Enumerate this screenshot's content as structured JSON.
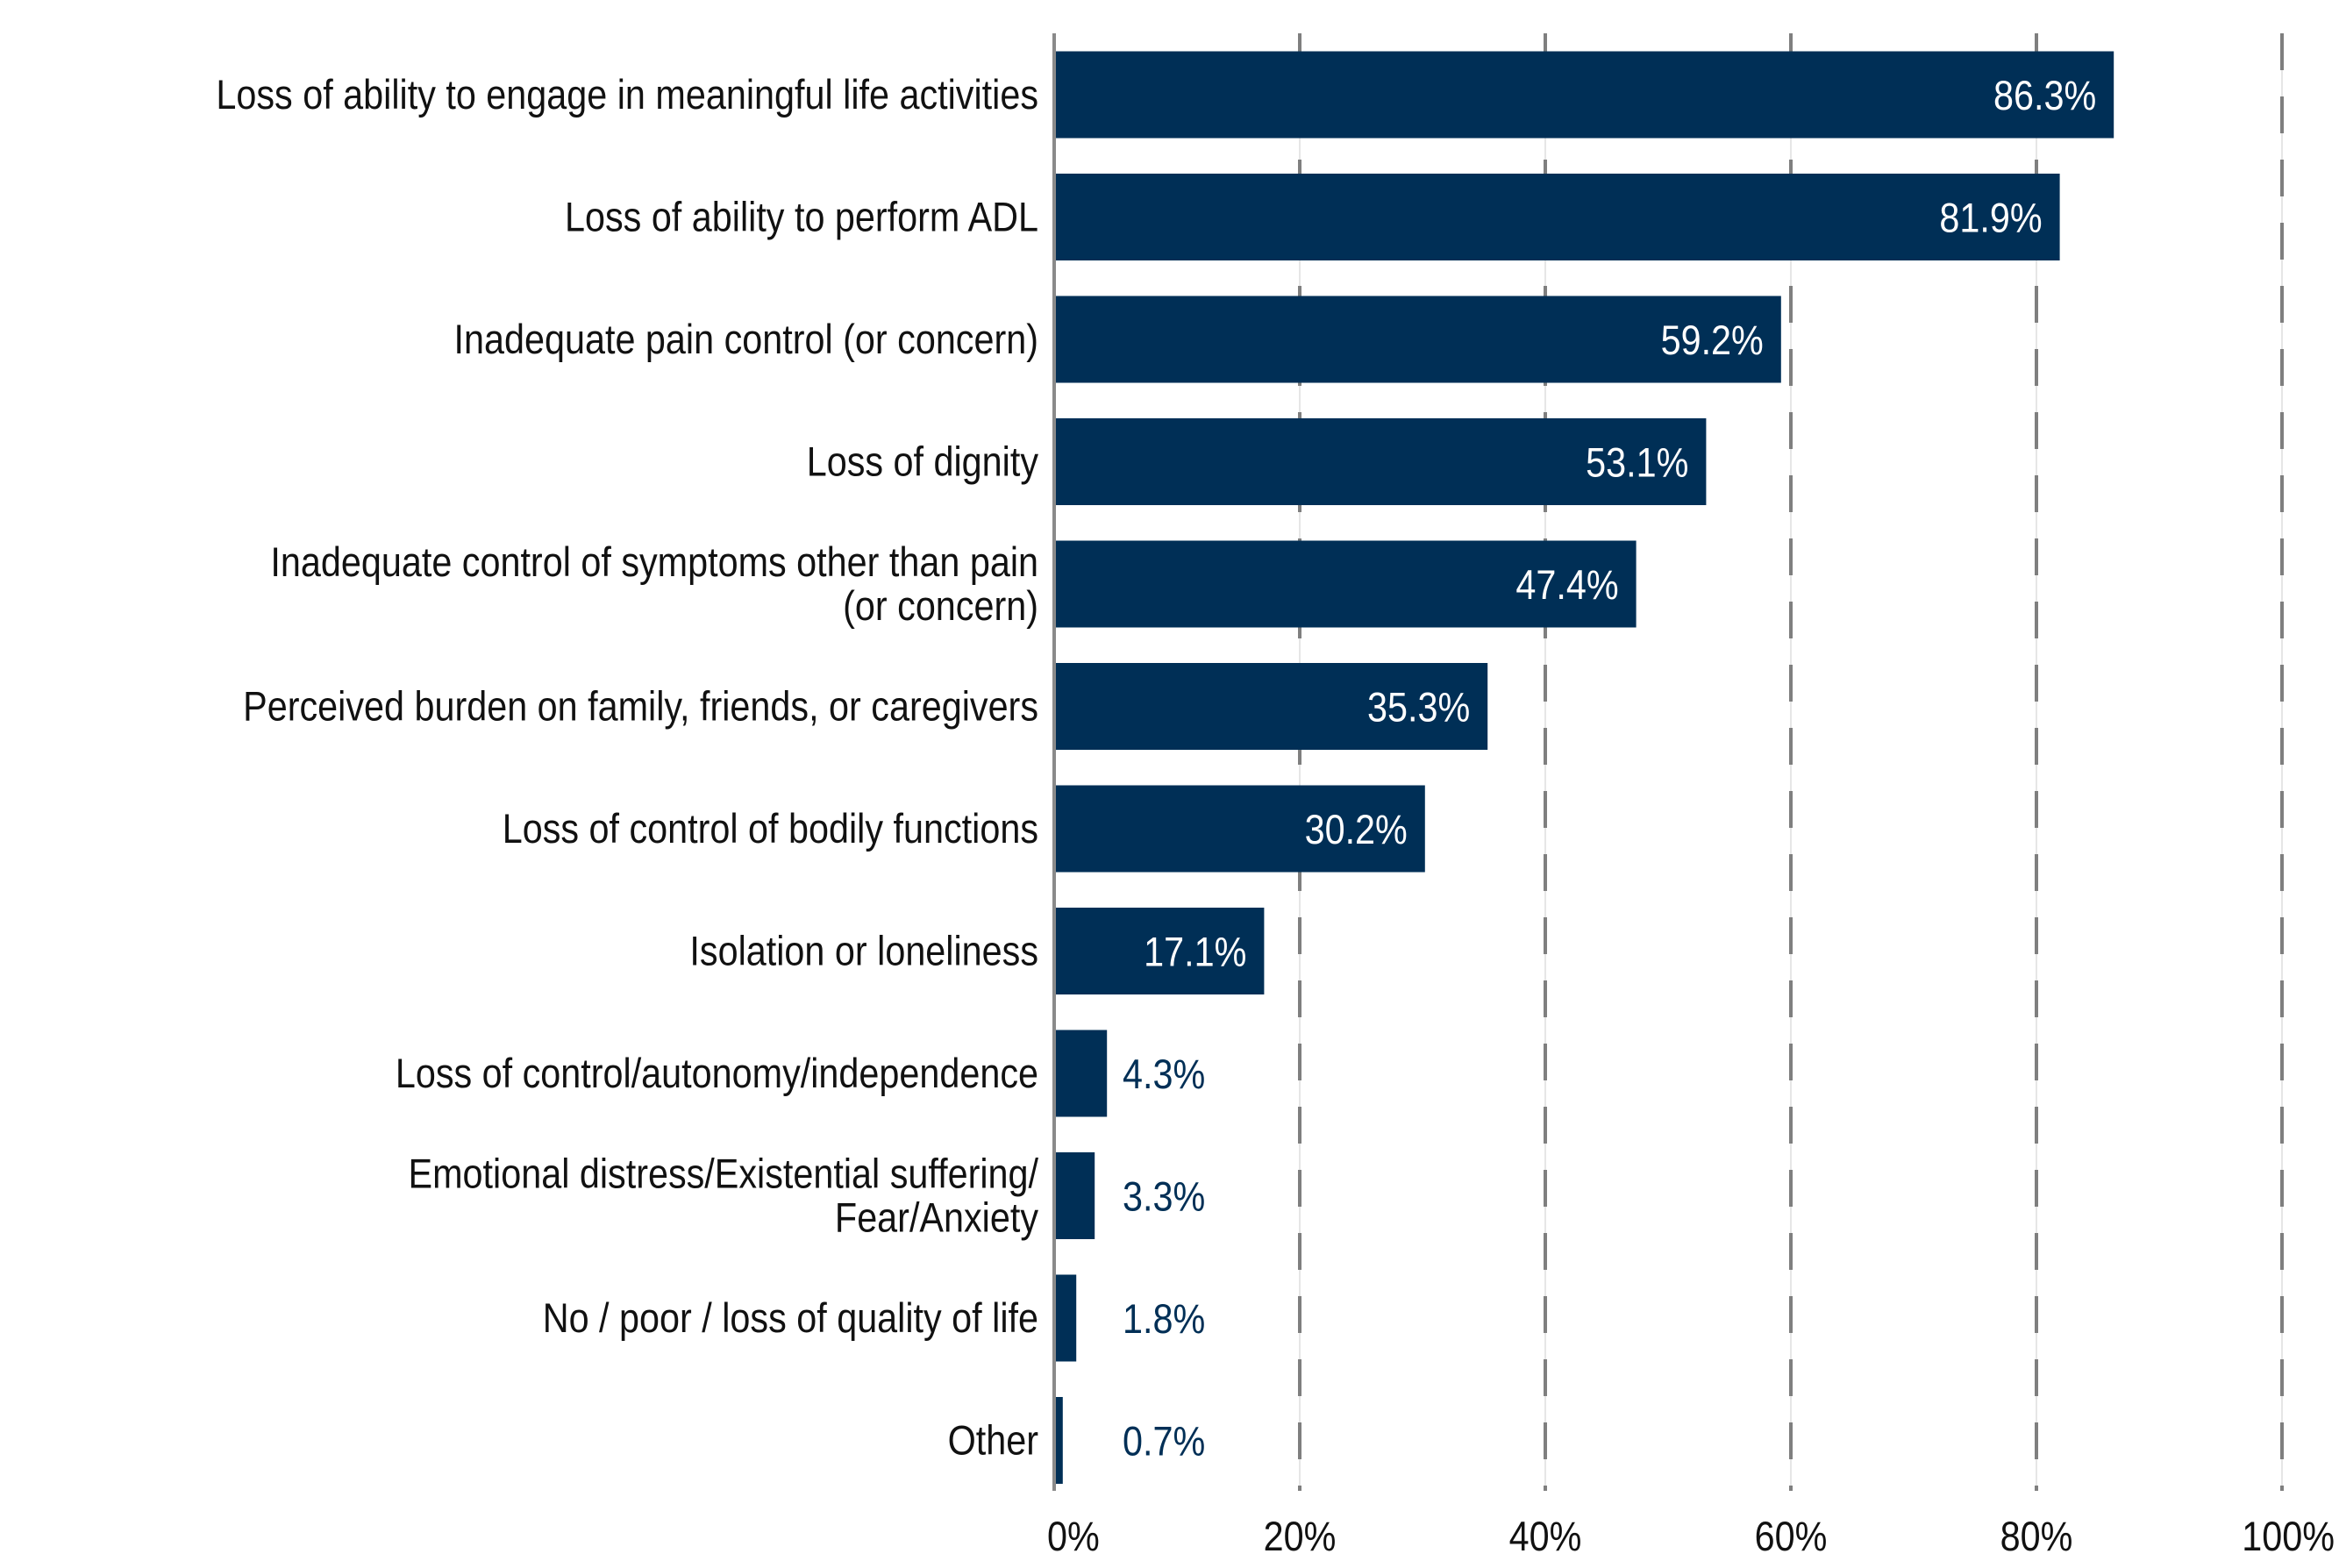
{
  "chart_data": {
    "type": "bar",
    "orientation": "horizontal",
    "title": "",
    "xlabel": "",
    "ylabel": "",
    "xlim": [
      0,
      100
    ],
    "x_ticks": [
      "0%",
      "20%",
      "40%",
      "60%",
      "80%",
      "100%"
    ],
    "grid": "vertical dashed",
    "bar_color": "#002f56",
    "inside_label_color": "#ffffff",
    "outside_label_color": "#002f56",
    "categories": [
      [
        "Loss of ability to engage in meaningful life activities"
      ],
      [
        "Loss of ability to perform ADL"
      ],
      [
        "Inadequate pain control (or concern)"
      ],
      [
        "Loss of dignity"
      ],
      [
        "Inadequate control of symptoms other than pain",
        "(or concern)"
      ],
      [
        "Perceived burden on family, friends, or caregivers"
      ],
      [
        "Loss of control of bodily functions"
      ],
      [
        "Isolation or loneliness"
      ],
      [
        "Loss of control/autonomy/independence"
      ],
      [
        "Emotional distress/Existential suffering/",
        "Fear/Anxiety"
      ],
      [
        "No / poor / loss of quality of life"
      ],
      [
        "Other"
      ]
    ],
    "values": [
      86.3,
      81.9,
      59.2,
      53.1,
      47.4,
      35.3,
      30.2,
      17.1,
      4.3,
      3.3,
      1.8,
      0.7
    ],
    "value_labels": [
      "86.3%",
      "81.9%",
      "59.2%",
      "53.1%",
      "47.4%",
      "35.3%",
      "30.2%",
      "17.1%",
      "4.3%",
      "3.3%",
      "1.8%",
      "0.7%"
    ]
  }
}
